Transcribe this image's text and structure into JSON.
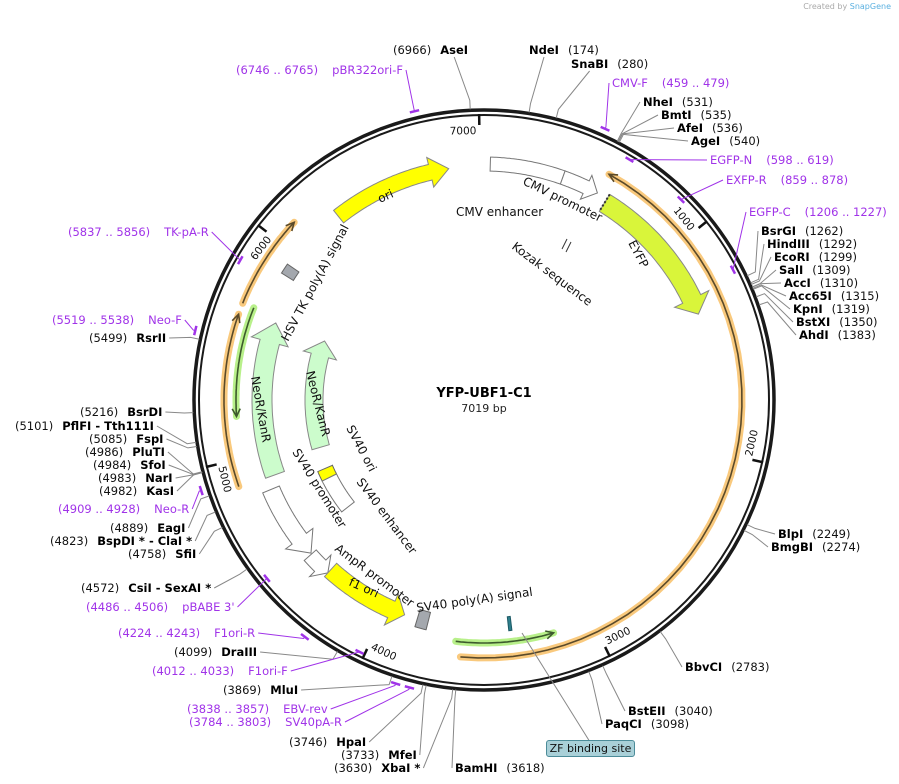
{
  "credit": {
    "prefix": "Created by",
    "brand": "SnapGene"
  },
  "plasmid": {
    "name": "YFP-UBF1-C1",
    "length_label": "7019 bp",
    "length": 7019
  },
  "ticks": [
    "1000",
    "2000",
    "3000",
    "4000",
    "5000",
    "6000",
    "7000"
  ],
  "enzymes": [
    {
      "name": "AseI",
      "pos": "(6966)",
      "bp": 6966
    },
    {
      "name": "NdeI",
      "pos": "(174)",
      "bp": 174
    },
    {
      "name": "SnaBI",
      "pos": "(280)",
      "bp": 280
    },
    {
      "name": "NheI",
      "pos": "(531)",
      "bp": 531
    },
    {
      "name": "BmtI",
      "pos": "(535)",
      "bp": 535
    },
    {
      "name": "AfeI",
      "pos": "(536)",
      "bp": 536
    },
    {
      "name": "AgeI",
      "pos": "(540)",
      "bp": 540
    },
    {
      "name": "BsrGI",
      "pos": "(1262)",
      "bp": 1262
    },
    {
      "name": "HindIII",
      "pos": "(1292)",
      "bp": 1292
    },
    {
      "name": "EcoRI",
      "pos": "(1299)",
      "bp": 1299
    },
    {
      "name": "SalI",
      "pos": "(1309)",
      "bp": 1309
    },
    {
      "name": "AccI",
      "pos": "(1310)",
      "bp": 1310
    },
    {
      "name": "Acc65I",
      "pos": "(1315)",
      "bp": 1315
    },
    {
      "name": "KpnI",
      "pos": "(1319)",
      "bp": 1319
    },
    {
      "name": "BstXI",
      "pos": "(1350)",
      "bp": 1350
    },
    {
      "name": "AhdI",
      "pos": "(1383)",
      "bp": 1383
    },
    {
      "name": "BlpI",
      "pos": "(2249)",
      "bp": 2249
    },
    {
      "name": "BmgBI",
      "pos": "(2274)",
      "bp": 2274
    },
    {
      "name": "BbvCI",
      "pos": "(2783)",
      "bp": 2783
    },
    {
      "name": "BstEII",
      "pos": "(3040)",
      "bp": 3040
    },
    {
      "name": "PaqCI",
      "pos": "(3098)",
      "bp": 3098
    },
    {
      "name": "BamHI",
      "pos": "(3618)",
      "bp": 3618
    },
    {
      "name": "XbaI *",
      "pos": "(3630)",
      "bp": 3630
    },
    {
      "name": "MfeI",
      "pos": "(3733)",
      "bp": 3733
    },
    {
      "name": "HpaI",
      "pos": "(3746)",
      "bp": 3746
    },
    {
      "name": "MluI",
      "pos": "(3869)",
      "bp": 3869
    },
    {
      "name": "DraIII",
      "pos": "(4099)",
      "bp": 4099
    },
    {
      "name": "CsiI  - SexAI *",
      "pos": "(4572)",
      "bp": 4572
    },
    {
      "name": "SfiI",
      "pos": "(4758)",
      "bp": 4758
    },
    {
      "name": "BspDI * - ClaI *",
      "pos": "(4823)",
      "bp": 4823
    },
    {
      "name": "EagI",
      "pos": "(4889)",
      "bp": 4889
    },
    {
      "name": "KasI",
      "pos": "(4982)",
      "bp": 4982
    },
    {
      "name": "NarI",
      "pos": "(4983)",
      "bp": 4983
    },
    {
      "name": "SfoI",
      "pos": "(4984)",
      "bp": 4984
    },
    {
      "name": "PluTI",
      "pos": "(4986)",
      "bp": 4986
    },
    {
      "name": "FspI",
      "pos": "(5085)",
      "bp": 5085
    },
    {
      "name": "PflFI  - Tth111I",
      "pos": "(5101)",
      "bp": 5101
    },
    {
      "name": "BsrDI",
      "pos": "(5216)",
      "bp": 5216
    },
    {
      "name": "RsrII",
      "pos": "(5499)",
      "bp": 5499
    }
  ],
  "primers": [
    {
      "name": "pBR322ori-F",
      "range": "(6746 .. 6765)",
      "bp": 6755
    },
    {
      "name": "CMV-F",
      "range": "(459 .. 479)",
      "bp": 469
    },
    {
      "name": "EGFP-N",
      "range": "(598 .. 619)",
      "bp": 608
    },
    {
      "name": "EXFP-R",
      "range": "(859 .. 878)",
      "bp": 868
    },
    {
      "name": "EGFP-C",
      "range": "(1206 .. 1227)",
      "bp": 1216
    },
    {
      "name": "TK-pA-R",
      "range": "(5837 .. 5856)",
      "bp": 5846
    },
    {
      "name": "Neo-F",
      "range": "(5519 .. 5538)",
      "bp": 5528
    },
    {
      "name": "Neo-R",
      "range": "(4909 .. 4928)",
      "bp": 4918
    },
    {
      "name": "pBABE 3'",
      "range": "(4486 .. 4506)",
      "bp": 4496
    },
    {
      "name": "F1ori-R",
      "range": "(4224 .. 4243)",
      "bp": 4233
    },
    {
      "name": "F1ori-F",
      "range": "(4012 .. 4033)",
      "bp": 4022
    },
    {
      "name": "EBV-rev",
      "range": "(3838 .. 3857)",
      "bp": 3847
    },
    {
      "name": "SV40pA-R",
      "range": "(3784 .. 3803)",
      "bp": 3793
    }
  ],
  "features": {
    "ori": "ori",
    "cmv_enhancer": "CMV enhancer",
    "cmv_promoter": "CMV promoter",
    "eyfp": "EYFP",
    "kozak": "Kozak sequence",
    "hsv_tk_polya": "HSV TK poly(A) signal",
    "neor_outer": "NeoR/KanR",
    "neor_inner": "NeoR/KanR",
    "sv40_ori": "SV40 ori",
    "sv40_enhancer": "SV40 enhancer",
    "sv40_promoter": "SV40 promoter",
    "ampr_promoter": "AmpR promoter",
    "f1_ori": "f1 ori",
    "sv40_polya": "SV40 poly(A) signal",
    "zf_binding_site": "ZF binding site"
  },
  "colors": {
    "primer": "#a033e8",
    "yellow": "#ffff00",
    "eyfp": "#d9f53a",
    "neo": "#ccfccc",
    "orange": "#f9c97d",
    "green": "#b8f08a",
    "gray_box": "#a4a8ae",
    "zf": "#a9d0d8"
  }
}
